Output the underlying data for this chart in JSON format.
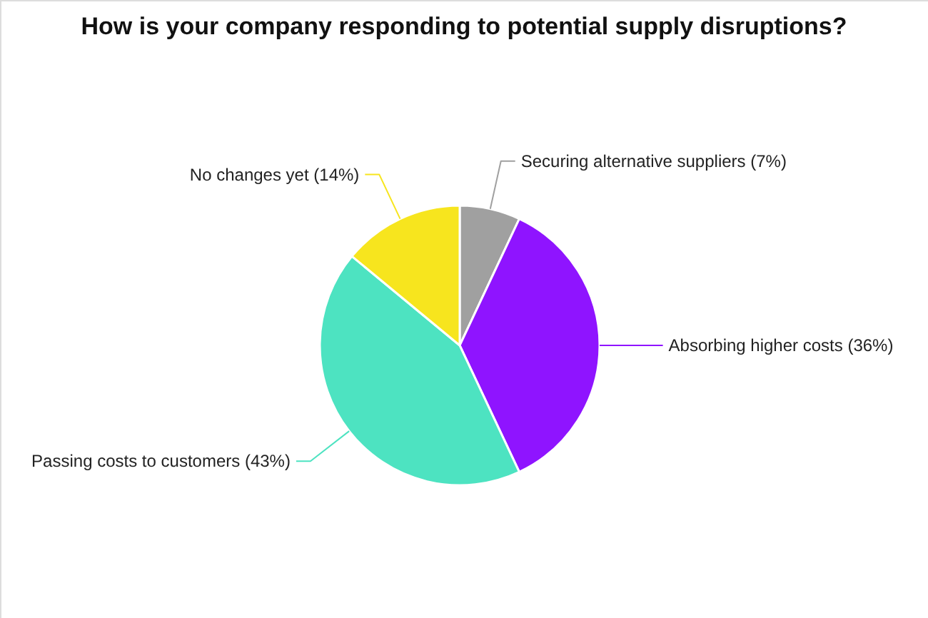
{
  "chart_data": {
    "type": "pie",
    "title": "How is your company responding to potential supply disruptions?",
    "categories": [
      "Securing alternative suppliers",
      "Absorbing higher costs",
      "Passing costs to customers",
      "No changes yet"
    ],
    "values": [
      7,
      36,
      43,
      14
    ],
    "value_labels": [
      "(7%)",
      "(36%)",
      "(43%)",
      "(14%)"
    ],
    "colors": [
      "#a0a0a0",
      "#8f14ff",
      "#4de3c1",
      "#f7e51e"
    ],
    "legend": false
  }
}
